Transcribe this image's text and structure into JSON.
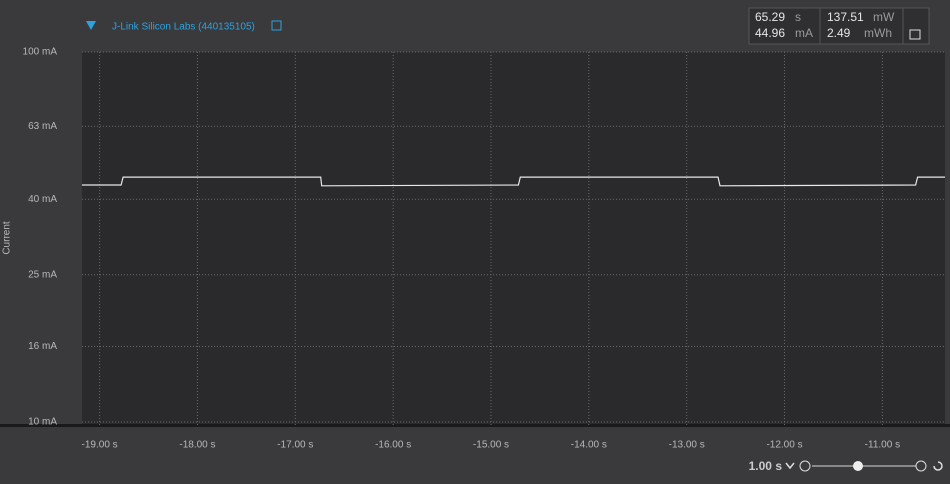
{
  "header": {
    "device": "J-Link Silicon Labs (440135105)"
  },
  "stats": {
    "time": "65.29",
    "time_unit": "s",
    "current": "44.96",
    "current_unit": "mA",
    "power": "137.51",
    "power_unit": "mW",
    "energy": "2.49",
    "energy_unit": "mWh"
  },
  "zoom": {
    "label": "1.00 s"
  },
  "chart_data": {
    "type": "line",
    "y_label": "Current",
    "log_y": true,
    "grid": true,
    "xlim": [
      -19.18,
      -10.36
    ],
    "ylim": [
      10,
      100
    ],
    "xticks": [
      {
        "value": -19,
        "label": "-19.00 s"
      },
      {
        "value": -18,
        "label": "-18.00 s"
      },
      {
        "value": -17,
        "label": "-17.00 s"
      },
      {
        "value": -16,
        "label": "-16.00 s"
      },
      {
        "value": -15,
        "label": "-15.00 s"
      },
      {
        "value": -14,
        "label": "-14.00 s"
      },
      {
        "value": -13,
        "label": "-13.00 s"
      },
      {
        "value": -12,
        "label": "-12.00 s"
      },
      {
        "value": -11,
        "label": "-11.00 s"
      }
    ],
    "yticks": [
      {
        "value": 10,
        "label": "10 mA"
      },
      {
        "value": 16,
        "label": "16 mA"
      },
      {
        "value": 25,
        "label": "25 mA"
      },
      {
        "value": 40,
        "label": "40 mA"
      },
      {
        "value": 63,
        "label": "63 mA"
      },
      {
        "value": 100,
        "label": "100 mA"
      }
    ],
    "x": [
      -19.18,
      -18.78,
      -18.76,
      -16.74,
      -16.73,
      -14.72,
      -14.7,
      -12.68,
      -12.66,
      -10.66,
      -10.64,
      -10.36
    ],
    "series": [
      {
        "name": "Current",
        "color": "#e8e8e8",
        "values": [
          43.7,
          43.7,
          45.9,
          45.9,
          43.5,
          43.7,
          45.9,
          45.9,
          43.5,
          43.7,
          45.9,
          45.9
        ]
      }
    ]
  }
}
